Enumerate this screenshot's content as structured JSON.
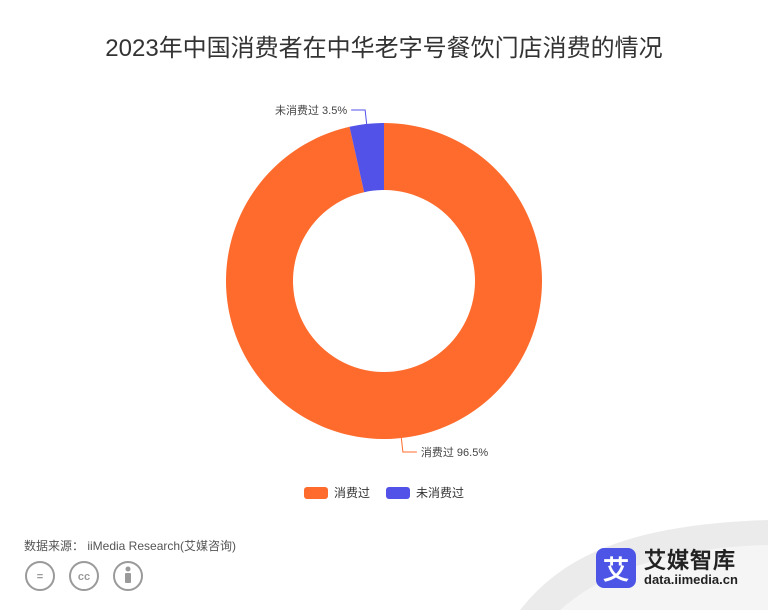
{
  "chart_data": {
    "type": "pie",
    "title": "2023年中国消费者在中华老字号餐饮门店消费的情况",
    "donut": true,
    "slices": [
      {
        "name": "消费过",
        "value": 96.5,
        "label": "消费过 96.5%",
        "color": "#ff6b2c"
      },
      {
        "name": "未消费过",
        "value": 3.5,
        "label": "未消费过 3.5%",
        "color": "#5252e8"
      }
    ],
    "legend": [
      "消费过",
      "未消费过"
    ],
    "legend_position": "bottom"
  },
  "footer": {
    "source": "数据来源： iiMedia Research(艾媒咨询)",
    "brand_logo_char": "艾",
    "brand_name": "艾媒智库",
    "brand_url": "data.iimedia.cn",
    "license_icons": [
      "creative-commons-logo",
      "cc-icon",
      "equals-icon",
      "attribution-icon"
    ]
  }
}
